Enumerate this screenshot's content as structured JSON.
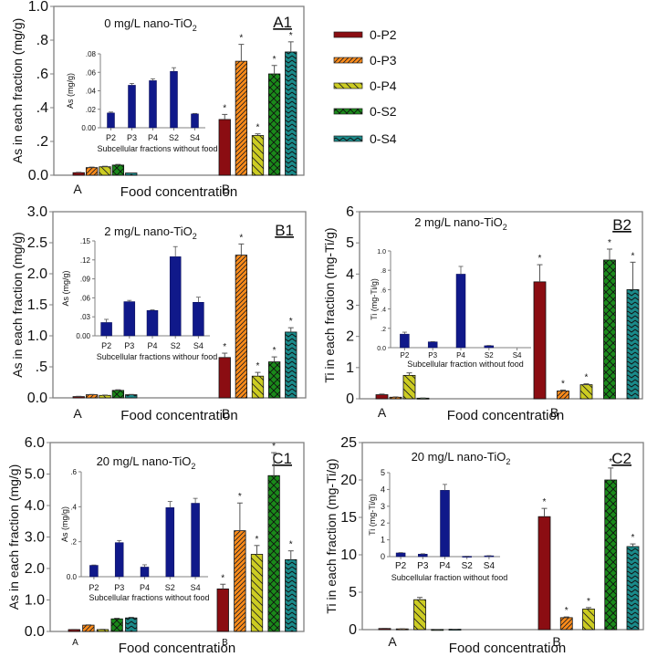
{
  "chart_data": [
    {
      "id": "A1",
      "type": "bar",
      "panel_label": "A1",
      "title": "0 mg/L nano-TiO",
      "title_sub": "2",
      "xlabel": "Food concentration",
      "ylabel": "As in each fraction (mg/g)",
      "ylim": [
        0,
        1.0
      ],
      "yticks": [
        0,
        0.2,
        0.4,
        0.6,
        0.8,
        1.0
      ],
      "yticklabels": [
        "0.0",
        ".2",
        ".4",
        ".6",
        ".8",
        "1.0"
      ],
      "categories": [
        "A",
        "B"
      ],
      "series": [
        {
          "name": "0-P2",
          "values": [
            0.015,
            0.33
          ],
          "errors": [
            0.002,
            0.03
          ],
          "sig": [
            false,
            true
          ]
        },
        {
          "name": "0-P3",
          "values": [
            0.045,
            0.675
          ],
          "errors": [
            0.003,
            0.1
          ],
          "sig": [
            false,
            true
          ]
        },
        {
          "name": "0-P4",
          "values": [
            0.05,
            0.235
          ],
          "errors": [
            0.003,
            0.01
          ],
          "sig": [
            false,
            true
          ]
        },
        {
          "name": "0-S2",
          "values": [
            0.06,
            0.6
          ],
          "errors": [
            0.004,
            0.05
          ],
          "sig": [
            false,
            true
          ]
        },
        {
          "name": "0-S4",
          "values": [
            0.013,
            0.73
          ],
          "errors": [
            0.001,
            0.06
          ],
          "sig": [
            false,
            true
          ]
        }
      ],
      "inset": {
        "xlabel": "Subcellular fractions without food",
        "ylabel": "As (mg/g)",
        "ylim": [
          0,
          0.08
        ],
        "yticks": [
          0,
          0.02,
          0.04,
          0.06,
          0.08
        ],
        "yticklabels": [
          "0.00",
          ".02",
          ".04",
          ".06",
          ".08"
        ],
        "categories": [
          "P2",
          "P3",
          "P4",
          "S2",
          "S4"
        ],
        "values": [
          0.016,
          0.046,
          0.051,
          0.061,
          0.015
        ],
        "errors": [
          0.001,
          0.002,
          0.002,
          0.004,
          0.0005
        ]
      }
    },
    {
      "id": "B1",
      "type": "bar",
      "panel_label": "B1",
      "title": "2 mg/L nano-TiO",
      "title_sub": "2",
      "xlabel": "Food concentration",
      "ylabel": "As in each fraction (mg/g)",
      "ylim": [
        0,
        3.0
      ],
      "yticks": [
        0,
        0.5,
        1.0,
        1.5,
        2.0,
        2.5,
        3.0
      ],
      "yticklabels": [
        "0.0",
        ".5",
        "1.0",
        "1.5",
        "2.0",
        "2.5",
        "3.0"
      ],
      "categories": [
        "A",
        "B"
      ],
      "series": [
        {
          "name": "0-P2",
          "values": [
            0.02,
            0.65
          ],
          "errors": [
            0.005,
            0.07
          ],
          "sig": [
            false,
            true
          ]
        },
        {
          "name": "0-P3",
          "values": [
            0.05,
            2.3
          ],
          "errors": [
            0.005,
            0.18
          ],
          "sig": [
            false,
            true
          ]
        },
        {
          "name": "0-P4",
          "values": [
            0.04,
            0.35
          ],
          "errors": [
            0.005,
            0.06
          ],
          "sig": [
            false,
            true
          ]
        },
        {
          "name": "0-S2",
          "values": [
            0.12,
            0.58
          ],
          "errors": [
            0.01,
            0.08
          ],
          "sig": [
            false,
            true
          ]
        },
        {
          "name": "0-S4",
          "values": [
            0.05,
            1.06
          ],
          "errors": [
            0.005,
            0.07
          ],
          "sig": [
            false,
            true
          ]
        }
      ],
      "inset": {
        "xlabel": "Subcellular fractions withour food",
        "ylabel": "As (mg/g)",
        "ylim": [
          0,
          0.15
        ],
        "yticks": [
          0,
          0.03,
          0.06,
          0.09,
          0.12,
          0.15
        ],
        "yticklabels": [
          "0.00",
          ".03",
          ".06",
          ".09",
          ".12",
          ".15"
        ],
        "categories": [
          "P2",
          "P3",
          "P4",
          "S2",
          "S4"
        ],
        "values": [
          0.021,
          0.054,
          0.04,
          0.125,
          0.053
        ],
        "errors": [
          0.005,
          0.002,
          0.001,
          0.016,
          0.008
        ]
      }
    },
    {
      "id": "B2",
      "type": "bar",
      "panel_label": "B2",
      "title": "2 mg/L nano-TiO",
      "title_sub": "2",
      "xlabel": "Food concentration",
      "ylabel": "Ti in each fraction (mg-Ti/g)",
      "ylim": [
        0,
        6
      ],
      "yticks": [
        0,
        1,
        2,
        3,
        4,
        5,
        6
      ],
      "yticklabels": [
        "0",
        "1",
        "2",
        "3",
        "4",
        "5",
        "6"
      ],
      "categories": [
        "A",
        "B"
      ],
      "series": [
        {
          "name": "0-P2",
          "values": [
            0.13,
            3.75
          ],
          "errors": [
            0.02,
            0.55
          ],
          "sig": [
            false,
            true
          ]
        },
        {
          "name": "0-P3",
          "values": [
            0.05,
            0.25
          ],
          "errors": [
            0.01,
            0.03
          ],
          "sig": [
            false,
            true
          ]
        },
        {
          "name": "0-P4",
          "values": [
            0.75,
            0.45
          ],
          "errors": [
            0.08,
            0.03
          ],
          "sig": [
            false,
            true
          ]
        },
        {
          "name": "0-S2",
          "values": [
            0.02,
            4.45
          ],
          "errors": [
            0.005,
            0.35
          ],
          "sig": [
            false,
            true
          ]
        },
        {
          "name": "0-S4",
          "values": [
            0,
            3.5
          ],
          "errors": [
            0,
            0.88
          ],
          "sig": [
            false,
            true
          ]
        }
      ],
      "inset": {
        "xlabel": "Subcellular fraction without food",
        "ylabel": "Ti (mg-Ti/g)",
        "ylim": [
          0,
          1.0
        ],
        "yticks": [
          0,
          0.2,
          0.4,
          0.6,
          0.8,
          1.0
        ],
        "yticklabels": [
          "0.0",
          ".2",
          ".4",
          ".6",
          ".8",
          "1.0"
        ],
        "categories": [
          "P2",
          "P3",
          "P4",
          "S2",
          "S4"
        ],
        "values": [
          0.14,
          0.06,
          0.76,
          0.02,
          0
        ],
        "errors": [
          0.02,
          0.003,
          0.08,
          0.003,
          0
        ]
      }
    },
    {
      "id": "C1",
      "type": "bar",
      "panel_label": "C1",
      "title": "20 mg/L nano-TiO",
      "title_sub": "2",
      "xlabel": "Food concentration",
      "ylabel": "As in each fraction (mg/g)",
      "ylim": [
        0,
        6.0
      ],
      "yticks": [
        0,
        1,
        2,
        3,
        4,
        5,
        6
      ],
      "yticklabels": [
        "0.0",
        "1.0",
        "2.0",
        "3.0",
        "4.0",
        "5.0",
        "6.0"
      ],
      "categories": [
        "A",
        "B"
      ],
      "series": [
        {
          "name": "0-P2",
          "values": [
            0.06,
            1.35
          ],
          "errors": [
            0.005,
            0.15
          ],
          "sig": [
            false,
            true
          ]
        },
        {
          "name": "0-P3",
          "values": [
            0.2,
            3.2
          ],
          "errors": [
            0.01,
            0.88
          ],
          "sig": [
            false,
            true
          ]
        },
        {
          "name": "0-P4",
          "values": [
            0.06,
            2.45
          ],
          "errors": [
            0.01,
            0.28
          ],
          "sig": [
            false,
            true
          ]
        },
        {
          "name": "0-S2",
          "values": [
            0.4,
            4.95
          ],
          "errors": [
            0.02,
            0.73
          ],
          "sig": [
            false,
            true
          ]
        },
        {
          "name": "0-S4",
          "values": [
            0.43,
            2.28
          ],
          "errors": [
            0.02,
            0.28
          ],
          "sig": [
            false,
            true
          ]
        }
      ],
      "inset": {
        "xlabel": "Subcellular fractions without food",
        "ylabel": "As (mg/g)",
        "ylim": [
          0,
          0.6
        ],
        "yticks": [
          0,
          0.2,
          0.4,
          0.6
        ],
        "yticklabels": [
          "0.0",
          ".2",
          ".4",
          ".6"
        ],
        "categories": [
          "P2",
          "P3",
          "P4",
          "S2",
          "S4"
        ],
        "values": [
          0.065,
          0.195,
          0.055,
          0.395,
          0.42
        ],
        "errors": [
          0.002,
          0.012,
          0.013,
          0.035,
          0.028
        ]
      }
    },
    {
      "id": "C2",
      "type": "bar",
      "panel_label": "C2",
      "title": "20 mg/L nano-TiO",
      "title_sub": "2",
      "xlabel": "Food concentration",
      "ylabel": "Ti in each fraction (mg-Ti/g)",
      "ylim": [
        0,
        25
      ],
      "yticks": [
        0,
        5,
        10,
        15,
        20,
        25
      ],
      "yticklabels": [
        "0",
        "5",
        "10",
        "15",
        "20",
        "25"
      ],
      "categories": [
        "A",
        "B"
      ],
      "series": [
        {
          "name": "0-P2",
          "values": [
            0.15,
            15.1
          ],
          "errors": [
            0.03,
            1.1
          ],
          "sig": [
            false,
            true
          ]
        },
        {
          "name": "0-P3",
          "values": [
            0.1,
            1.6
          ],
          "errors": [
            0.02,
            0.1
          ],
          "sig": [
            false,
            true
          ]
        },
        {
          "name": "0-P4",
          "values": [
            4.0,
            2.75
          ],
          "errors": [
            0.3,
            0.2
          ],
          "sig": [
            false,
            true
          ]
        },
        {
          "name": "0-S2",
          "values": [
            0.02,
            20.0
          ],
          "errors": [
            0.005,
            1.6
          ],
          "sig": [
            false,
            true
          ]
        },
        {
          "name": "0-S4",
          "values": [
            0.05,
            11.1
          ],
          "errors": [
            0.01,
            0.35
          ],
          "sig": [
            false,
            true
          ]
        }
      ],
      "inset": {
        "xlabel": "Subcellular fraction without food",
        "ylabel": "Ti (mg-Ti/g)",
        "ylim": [
          0,
          5
        ],
        "yticks": [
          0,
          1,
          2,
          3,
          4,
          5
        ],
        "yticklabels": [
          "0",
          "1",
          "2",
          "3",
          "4",
          "5"
        ],
        "categories": [
          "P2",
          "P3",
          "P4",
          "S2",
          "S4"
        ],
        "values": [
          0.22,
          0.15,
          3.95,
          0.02,
          0.05
        ],
        "errors": [
          0.02,
          0.02,
          0.35,
          0.005,
          0.01
        ]
      }
    }
  ],
  "legend": {
    "placement": "top-right",
    "entries": [
      {
        "name": "0-P2",
        "color": "#8b0d12",
        "pattern": "solid"
      },
      {
        "name": "0-P3",
        "color": "#ff8c1a",
        "pattern": "forward-diagonal"
      },
      {
        "name": "0-P4",
        "color": "#cccc22",
        "pattern": "back-diagonal"
      },
      {
        "name": "0-S2",
        "color": "#1a8a1a",
        "pattern": "crosshatch"
      },
      {
        "name": "0-S4",
        "color": "#1a8a8a",
        "pattern": "zigzag"
      }
    ]
  },
  "colors": {
    "inset_bar": "#10198a",
    "axis": "#808080",
    "sig_marker": "*"
  }
}
